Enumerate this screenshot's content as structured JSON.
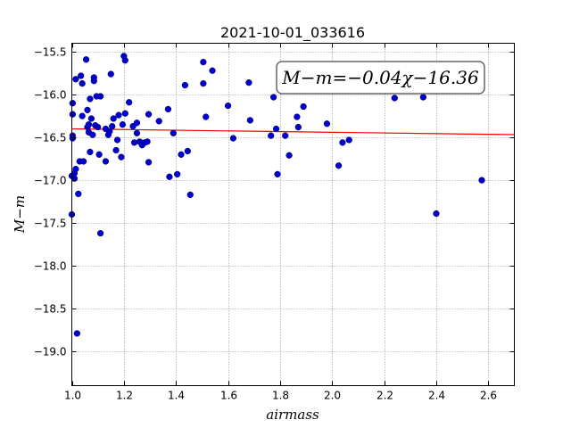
{
  "chart_data": {
    "type": "scatter",
    "title": "2021-10-01_033616",
    "xlabel": "airmass",
    "ylabel": "M−m",
    "xlim": [
      1.0,
      2.7
    ],
    "ylim": [
      -19.4,
      -15.4
    ],
    "y_inverted": true,
    "grid": true,
    "x_ticks": [
      1.0,
      1.2,
      1.4,
      1.6,
      1.8,
      2.0,
      2.2,
      2.4,
      2.6
    ],
    "x_tick_labels": [
      "1.0",
      "1.2",
      "1.4",
      "1.6",
      "1.8",
      "2.0",
      "2.2",
      "2.4",
      "2.6"
    ],
    "y_ticks": [
      -15.5,
      -16.0,
      -16.5,
      -17.0,
      -17.5,
      -18.0,
      -18.5,
      -19.0
    ],
    "y_tick_labels": [
      "−15.5",
      "−16.0",
      "−16.5",
      "−17.0",
      "−17.5",
      "−18.0",
      "−18.5",
      "−19.0"
    ],
    "annotation": "M−m=−0.04χ−16.36",
    "annotation_position": "top-right",
    "colors": {
      "points": "#0000cc",
      "fit": "#ff0000",
      "grid": "#555555"
    },
    "fit_line": {
      "slope": -0.04,
      "intercept": -16.36,
      "x_range": [
        1.0,
        2.7
      ]
    },
    "points": [
      [
        1.003,
        -16.1
      ],
      [
        1.003,
        -16.23
      ],
      [
        1.003,
        -16.48
      ],
      [
        1.003,
        -16.51
      ],
      [
        1.0,
        -16.95
      ],
      [
        1.0,
        -17.4
      ],
      [
        1.01,
        -16.92
      ],
      [
        1.01,
        -16.98
      ],
      [
        1.015,
        -15.82
      ],
      [
        1.015,
        -16.87
      ],
      [
        1.02,
        -18.79
      ],
      [
        1.025,
        -17.16
      ],
      [
        1.03,
        -16.78
      ],
      [
        1.035,
        -15.78
      ],
      [
        1.04,
        -15.87
      ],
      [
        1.04,
        -16.25
      ],
      [
        1.045,
        -16.78
      ],
      [
        1.055,
        -15.59
      ],
      [
        1.06,
        -16.18
      ],
      [
        1.06,
        -16.38
      ],
      [
        1.065,
        -16.35
      ],
      [
        1.065,
        -16.44
      ],
      [
        1.07,
        -16.05
      ],
      [
        1.07,
        -16.67
      ],
      [
        1.075,
        -16.28
      ],
      [
        1.08,
        -16.47
      ],
      [
        1.085,
        -15.8
      ],
      [
        1.085,
        -15.84
      ],
      [
        1.09,
        -16.36
      ],
      [
        1.095,
        -16.02
      ],
      [
        1.1,
        -16.38
      ],
      [
        1.105,
        -16.7
      ],
      [
        1.11,
        -16.02
      ],
      [
        1.11,
        -17.62
      ],
      [
        1.13,
        -16.4
      ],
      [
        1.13,
        -16.78
      ],
      [
        1.14,
        -16.47
      ],
      [
        1.145,
        -16.43
      ],
      [
        1.15,
        -15.76
      ],
      [
        1.155,
        -16.37
      ],
      [
        1.16,
        -16.28
      ],
      [
        1.17,
        -16.65
      ],
      [
        1.175,
        -16.53
      ],
      [
        1.18,
        -16.24
      ],
      [
        1.19,
        -16.73
      ],
      [
        1.195,
        -16.35
      ],
      [
        1.2,
        -15.55
      ],
      [
        1.205,
        -15.6
      ],
      [
        1.205,
        -16.22
      ],
      [
        1.22,
        -16.09
      ],
      [
        1.235,
        -16.37
      ],
      [
        1.24,
        -16.56
      ],
      [
        1.25,
        -16.45
      ],
      [
        1.25,
        -16.33
      ],
      [
        1.26,
        -16.55
      ],
      [
        1.265,
        -16.56
      ],
      [
        1.27,
        -16.59
      ],
      [
        1.28,
        -16.56
      ],
      [
        1.29,
        -16.55
      ],
      [
        1.295,
        -16.79
      ],
      [
        1.295,
        -16.23
      ],
      [
        1.335,
        -16.31
      ],
      [
        1.37,
        -16.17
      ],
      [
        1.375,
        -16.96
      ],
      [
        1.39,
        -16.45
      ],
      [
        1.405,
        -16.93
      ],
      [
        1.42,
        -16.7
      ],
      [
        1.435,
        -15.89
      ],
      [
        1.445,
        -16.66
      ],
      [
        1.455,
        -17.17
      ],
      [
        1.505,
        -15.62
      ],
      [
        1.505,
        -15.87
      ],
      [
        1.515,
        -16.26
      ],
      [
        1.54,
        -15.72
      ],
      [
        1.6,
        -16.13
      ],
      [
        1.62,
        -16.51
      ],
      [
        1.68,
        -15.86
      ],
      [
        1.685,
        -16.3
      ],
      [
        1.765,
        -16.48
      ],
      [
        1.775,
        -16.03
      ],
      [
        1.785,
        -16.4
      ],
      [
        1.79,
        -16.93
      ],
      [
        1.82,
        -16.48
      ],
      [
        1.835,
        -16.71
      ],
      [
        1.865,
        -16.26
      ],
      [
        1.87,
        -16.38
      ],
      [
        1.89,
        -16.14
      ],
      [
        1.98,
        -16.34
      ],
      [
        2.025,
        -16.83
      ],
      [
        2.04,
        -16.56
      ],
      [
        2.065,
        -16.53
      ],
      [
        2.24,
        -16.04
      ],
      [
        2.35,
        -16.03
      ],
      [
        2.4,
        -17.39
      ],
      [
        2.575,
        -17.0
      ]
    ]
  }
}
